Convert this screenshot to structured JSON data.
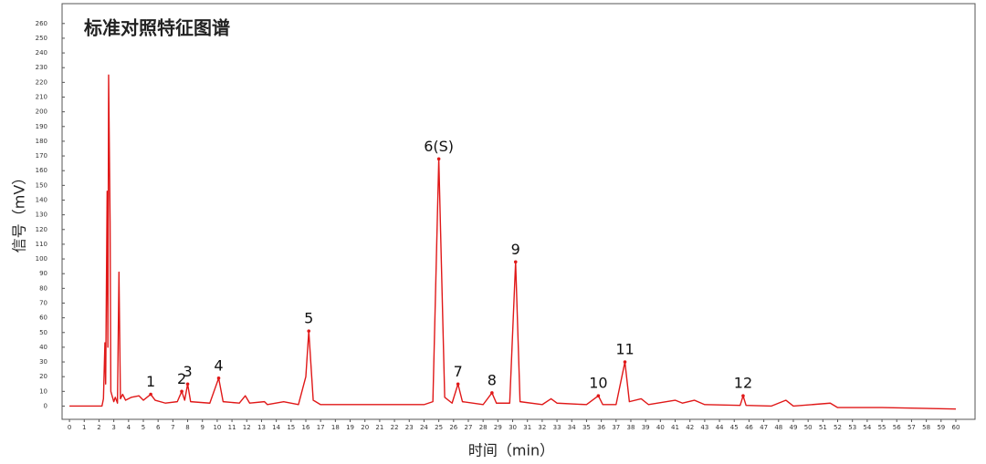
{
  "chart_data": {
    "type": "line",
    "title": "标准对照特征图谱",
    "x_label": "时间（min）",
    "y_label": "信号（mV）",
    "color": "#e01818",
    "xlim": [
      -0.5,
      61.3
    ],
    "ylim": [
      -9,
      273.5
    ],
    "xticks": [
      0,
      1,
      2,
      3,
      4,
      5,
      6,
      7,
      8,
      9,
      10,
      11,
      12,
      13,
      14,
      15,
      16,
      17,
      18,
      19,
      20,
      21,
      22,
      23,
      24,
      25,
      26,
      27,
      28,
      29,
      30,
      31,
      32,
      33,
      34,
      35,
      36,
      37,
      38,
      39,
      40,
      41,
      42,
      43,
      44,
      45,
      46,
      47,
      48,
      49,
      50,
      51,
      52,
      53,
      54,
      55,
      56,
      57,
      58,
      59,
      60
    ],
    "yticks": [
      0,
      10,
      20,
      30,
      40,
      50,
      60,
      70,
      80,
      90,
      100,
      110,
      120,
      130,
      140,
      150,
      160,
      170,
      180,
      190,
      200,
      210,
      220,
      230,
      240,
      250,
      260
    ],
    "x": [
      0,
      2.2,
      2.3,
      2.4,
      2.45,
      2.55,
      2.6,
      2.65,
      2.75,
      2.8,
      3.0,
      3.1,
      3.25,
      3.35,
      3.45,
      3.6,
      3.8,
      4.2,
      4.7,
      5.0,
      5.5,
      5.8,
      6.5,
      7.3,
      7.6,
      7.8,
      8.0,
      8.2,
      9.5,
      10.1,
      10.4,
      11.5,
      11.9,
      12.2,
      13.2,
      13.4,
      14.5,
      15.5,
      16.0,
      16.2,
      16.5,
      17,
      20,
      24,
      24.6,
      25.0,
      25.4,
      25.9,
      26.3,
      26.6,
      28,
      28.6,
      28.9,
      29.8,
      30.2,
      30.5,
      32,
      32.6,
      33,
      35,
      35.8,
      36.1,
      37,
      37.6,
      37.9,
      38.7,
      39.2,
      41,
      41.5,
      42.3,
      43,
      45.4,
      45.6,
      45.8,
      47.5,
      48.5,
      49,
      51.5,
      52,
      55,
      60
    ],
    "values": [
      0,
      0,
      5,
      43,
      15,
      146,
      40,
      225,
      125,
      10,
      3,
      6,
      2,
      91,
      5,
      8,
      4,
      6,
      7,
      4,
      8,
      4,
      2,
      3,
      10,
      4,
      15,
      3,
      2,
      19,
      3,
      2,
      7,
      2,
      3,
      1,
      3,
      1,
      20,
      51,
      4,
      1,
      1,
      1,
      3,
      168,
      6,
      2,
      15,
      3,
      1,
      9,
      2,
      2,
      98,
      3,
      1,
      5,
      2,
      1,
      7,
      1,
      1,
      30,
      3,
      5,
      1,
      4,
      2,
      4,
      1,
      0.5,
      7,
      0.5,
      0,
      4,
      0,
      2,
      -1,
      -1,
      -2
    ],
    "peaks": [
      {
        "label": "1",
        "x": 5.5,
        "y": 8
      },
      {
        "label": "2",
        "x": 7.6,
        "y": 10
      },
      {
        "label": "3",
        "x": 8.0,
        "y": 15
      },
      {
        "label": "4",
        "x": 10.1,
        "y": 19
      },
      {
        "label": "5",
        "x": 16.2,
        "y": 51
      },
      {
        "label": "6(S)",
        "x": 25.0,
        "y": 168
      },
      {
        "label": "7",
        "x": 26.3,
        "y": 15
      },
      {
        "label": "8",
        "x": 28.6,
        "y": 9
      },
      {
        "label": "9",
        "x": 30.2,
        "y": 98
      },
      {
        "label": "10",
        "x": 35.8,
        "y": 7
      },
      {
        "label": "11",
        "x": 37.6,
        "y": 30
      },
      {
        "label": "12",
        "x": 45.6,
        "y": 7
      }
    ]
  }
}
